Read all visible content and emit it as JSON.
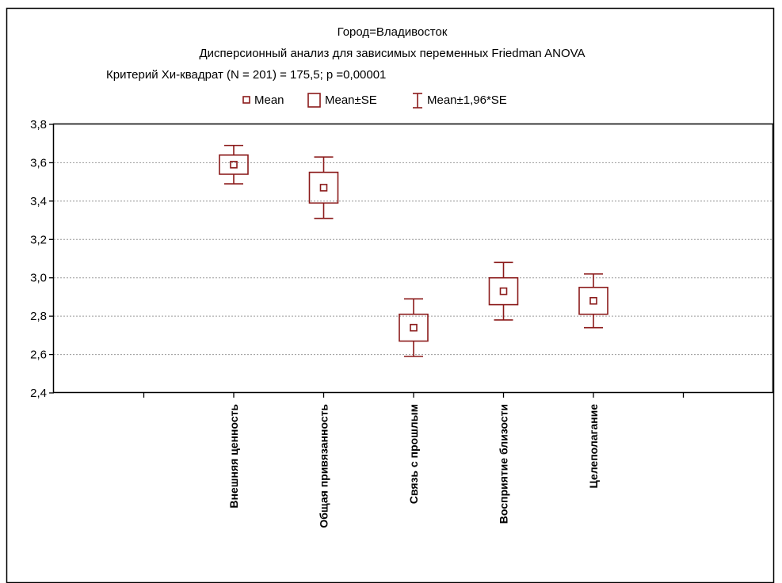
{
  "chart_data": {
    "type": "box",
    "title": [
      "Город=Владивосток",
      "Дисперсионный анализ для зависимых переменных Friedman ANOVA",
      "Критерий Хи-квадрат (N = 201) = 175,5; p =0,00001"
    ],
    "legend": {
      "placement": "top",
      "items": [
        "Mean",
        "Mean±SE",
        "Mean±1,96*SE"
      ]
    },
    "ylim": [
      2.4,
      3.8
    ],
    "yticks": [
      "2,4",
      "2,6",
      "2,8",
      "3,0",
      "3,2",
      "3,4",
      "3,6",
      "3,8"
    ],
    "ytick_values": [
      2.4,
      2.6,
      2.8,
      3.0,
      3.2,
      3.4,
      3.6,
      3.8
    ],
    "grid": true,
    "color": "#8b1a1a",
    "categories": [
      "Внешняя ценность",
      "Общая привязанность",
      "Связь с прошлым",
      "Восприятие близости",
      "Целеполагание"
    ],
    "series": [
      {
        "mean": 3.59,
        "se_low": 3.54,
        "se_high": 3.64,
        "ci_low": 3.49,
        "ci_high": 3.69
      },
      {
        "mean": 3.47,
        "se_low": 3.39,
        "se_high": 3.55,
        "ci_low": 3.31,
        "ci_high": 3.63
      },
      {
        "mean": 2.74,
        "se_low": 2.67,
        "se_high": 2.81,
        "ci_low": 2.59,
        "ci_high": 2.89
      },
      {
        "mean": 2.93,
        "se_low": 2.86,
        "se_high": 3.0,
        "ci_low": 2.78,
        "ci_high": 3.08
      },
      {
        "mean": 2.88,
        "se_low": 2.81,
        "se_high": 2.95,
        "ci_low": 2.74,
        "ci_high": 3.02
      }
    ]
  }
}
